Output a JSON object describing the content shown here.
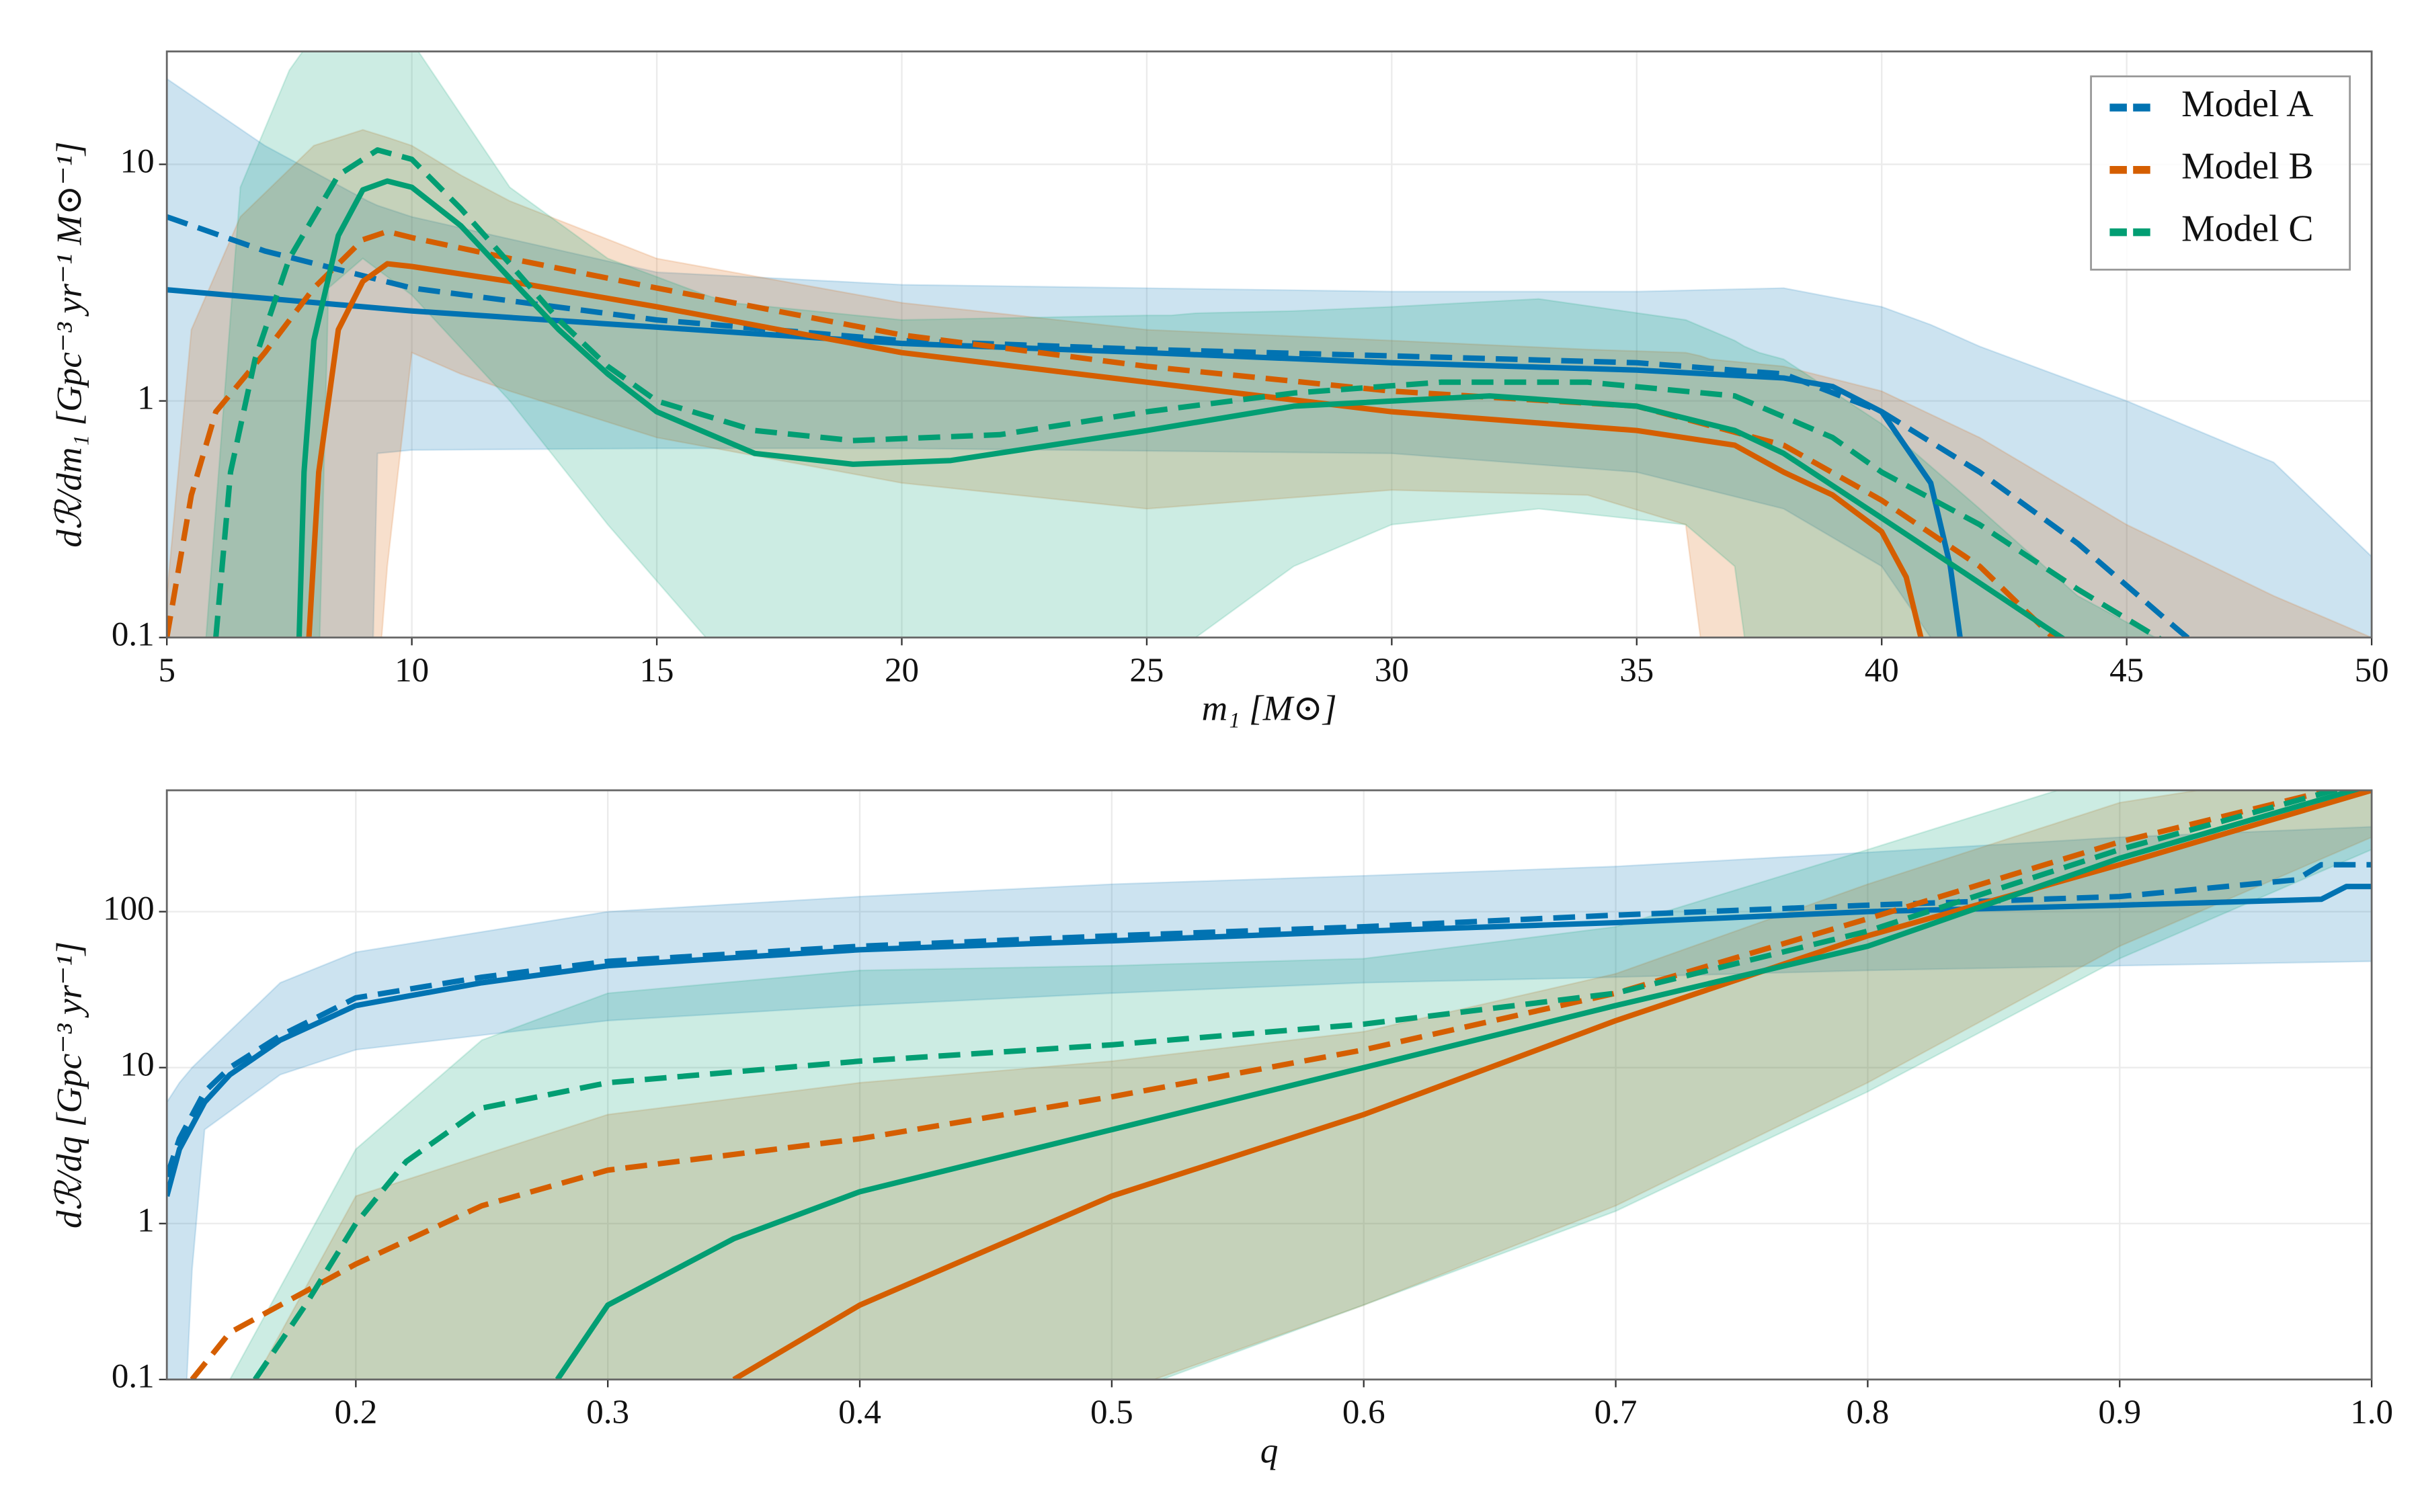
{
  "chart_data": [
    {
      "type": "line",
      "yscale": "log",
      "grid": true,
      "legend": "upper right",
      "xlabel": "m₁ [M⊙]",
      "ylabel": "dℛ/dm₁ [Gpc⁻³ yr⁻¹ M⊙⁻¹]",
      "xlim": [
        5,
        50
      ],
      "ylim": [
        0.1,
        30
      ],
      "xticks": [
        5,
        10,
        15,
        20,
        25,
        30,
        35,
        40,
        45,
        50
      ],
      "yticks": [
        0.1,
        1,
        10
      ],
      "series": [
        {
          "name": "Model A",
          "color": "#0173b2",
          "solid": {
            "x": [
              5,
              10,
              15,
              20,
              25,
              30,
              35,
              38,
              39,
              40,
              41,
              41.4,
              41.6,
              41.7
            ],
            "values": [
              2.95,
              2.4,
              2.05,
              1.75,
              1.6,
              1.45,
              1.35,
              1.25,
              1.15,
              0.9,
              0.45,
              0.2,
              0.1,
              0.05
            ]
          },
          "dashed": {
            "x": [
              5,
              7,
              10,
              15,
              20,
              25,
              30,
              35,
              38,
              40,
              42,
              44,
              46,
              46.5
            ],
            "values": [
              6.0,
              4.3,
              3.0,
              2.2,
              1.8,
              1.65,
              1.55,
              1.45,
              1.3,
              0.9,
              0.5,
              0.25,
              0.11,
              0.09
            ]
          },
          "band": {
            "x": [
              5,
              7,
              9.1,
              9.3,
              10,
              15,
              20,
              30,
              35,
              38,
              40,
              41,
              42,
              45,
              48,
              50
            ],
            "upper": [
              23,
              12,
              7,
              6.7,
              6,
              3.5,
              3.1,
              2.9,
              2.9,
              3.0,
              2.5,
              2.1,
              1.7,
              1.0,
              0.55,
              0.22
            ],
            "lower": [
              0.01,
              0.01,
              0.01,
              0.6,
              0.62,
              0.63,
              0.63,
              0.6,
              0.5,
              0.35,
              0.2,
              0.1,
              0.01,
              0.01,
              0.01,
              0.01
            ]
          }
        },
        {
          "name": "Model B",
          "color": "#d55e00",
          "solid": {
            "x": [
              7.9,
              8.1,
              8.5,
              9,
              9.5,
              10,
              12,
              15,
              20,
              25,
              30,
              35,
              37,
              38,
              39,
              40,
              40.5,
              40.8,
              40.9
            ],
            "values": [
              0.1,
              0.5,
              2.0,
              3.2,
              3.8,
              3.7,
              3.2,
              2.5,
              1.6,
              1.2,
              0.9,
              0.75,
              0.65,
              0.5,
              0.4,
              0.28,
              0.18,
              0.1,
              0.05
            ]
          },
          "dashed": {
            "x": [
              5,
              5.5,
              6,
              7,
              8,
              9,
              9.5,
              10,
              12,
              15,
              20,
              25,
              30,
              35,
              38,
              40,
              42,
              43.5,
              44
            ],
            "values": [
              0.1,
              0.4,
              0.9,
              1.6,
              3.0,
              4.8,
              5.2,
              4.9,
              4.0,
              3.0,
              1.9,
              1.4,
              1.1,
              0.95,
              0.65,
              0.38,
              0.2,
              0.1,
              0.08
            ]
          },
          "band": {
            "x": [
              5,
              5.5,
              6.5,
              8,
              9,
              9.5,
              10,
              11,
              12,
              15,
              20,
              25,
              30,
              34,
              36,
              36.3,
              36.5,
              38,
              40,
              42,
              45,
              48,
              50
            ],
            "upper": [
              0.15,
              2,
              6,
              12,
              14,
              13,
              12,
              9,
              7,
              4,
              2.6,
              2,
              1.8,
              1.65,
              1.6,
              1.55,
              1.5,
              1.4,
              1.1,
              0.7,
              0.3,
              0.15,
              0.1
            ],
            "lower": [
              0.01,
              0.01,
              0.01,
              0.01,
              0.01,
              0.2,
              1.6,
              1.3,
              1.1,
              0.7,
              0.45,
              0.35,
              0.42,
              0.4,
              0.3,
              0.1,
              0.01,
              0.01,
              0.01,
              0.01,
              0.01,
              0.01,
              0.01
            ]
          }
        },
        {
          "name": "Model C",
          "color": "#029e73",
          "solid": {
            "x": [
              7.7,
              7.8,
              8,
              8.5,
              9,
              9.5,
              10,
              11,
              12,
              13,
              14,
              15,
              17,
              19,
              21,
              25,
              28,
              32,
              35,
              37,
              38,
              40,
              42,
              44
            ],
            "values": [
              0.1,
              0.5,
              1.8,
              5,
              7.8,
              8.5,
              8,
              5.5,
              3.3,
              2,
              1.3,
              0.9,
              0.6,
              0.54,
              0.56,
              0.75,
              0.95,
              1.05,
              0.95,
              0.75,
              0.6,
              0.32,
              0.17,
              0.09
            ]
          },
          "dashed": {
            "x": [
              6,
              6.3,
              6.8,
              7.5,
              8.5,
              9.3,
              10,
              11,
              12,
              13,
              14,
              15,
              17,
              19,
              22,
              25,
              28,
              31,
              34,
              37,
              39,
              40,
              42,
              44,
              46
            ],
            "values": [
              0.1,
              0.5,
              1.5,
              4,
              9,
              11.5,
              10.5,
              6.5,
              3.8,
              2.2,
              1.4,
              1.0,
              0.75,
              0.68,
              0.72,
              0.9,
              1.08,
              1.2,
              1.2,
              1.05,
              0.7,
              0.5,
              0.3,
              0.16,
              0.09
            ]
          },
          "band": {
            "x": [
              5.8,
              6.5,
              7.5,
              8,
              8.3,
              9,
              10,
              12,
              14,
              16,
              16.5,
              20,
              25,
              25.5,
              26,
              28,
              30,
              33,
              36,
              37,
              37.2,
              37.5,
              38,
              40,
              42,
              44,
              46
            ],
            "upper": [
              0.1,
              8,
              25,
              35,
              40,
              42,
              33,
              8,
              4,
              2.8,
              2.6,
              2.2,
              2.3,
              2.3,
              2.35,
              2.4,
              2.5,
              2.7,
              2.2,
              1.8,
              1.7,
              1.6,
              1.5,
              0.8,
              0.35,
              0.15,
              0.09
            ],
            "lower": [
              0.01,
              0.01,
              0.01,
              0.01,
              3,
              4,
              2.8,
              1.0,
              0.3,
              0.1,
              0.01,
              0.01,
              0.01,
              0.01,
              0.1,
              0.2,
              0.3,
              0.35,
              0.3,
              0.2,
              0.1,
              0.01,
              0.01,
              0.01,
              0.01,
              0.01,
              0.01
            ]
          }
        }
      ]
    },
    {
      "type": "line",
      "yscale": "log",
      "grid": true,
      "xlabel": "q",
      "ylabel": "dℛ/dq [Gpc⁻³ yr⁻¹]",
      "xlim": [
        0.125,
        1.0
      ],
      "ylim": [
        0.1,
        600
      ],
      "xticks": [
        0.2,
        0.3,
        0.4,
        0.5,
        0.6,
        0.7,
        0.8,
        0.9,
        {
          "value": 1,
          "label": "1.0"
        }
      ],
      "yticks": [
        0.1,
        1,
        10,
        100
      ],
      "series": [
        {
          "name": "Model A",
          "color": "#0173b2",
          "solid": {
            "x": [
              0.125,
              0.13,
              0.14,
              0.15,
              0.17,
              0.2,
              0.25,
              0.3,
              0.4,
              0.5,
              0.6,
              0.7,
              0.8,
              0.9,
              0.98,
              0.99,
              1.0
            ],
            "values": [
              1.5,
              3,
              6,
              9,
              15,
              25,
              35,
              45,
              57,
              65,
              75,
              85,
              100,
              110,
              120,
              145,
              145
            ]
          },
          "dashed": {
            "x": [
              0.125,
              0.13,
              0.14,
              0.15,
              0.17,
              0.2,
              0.25,
              0.3,
              0.4,
              0.5,
              0.6,
              0.7,
              0.8,
              0.9,
              0.97,
              0.98,
              1.0
            ],
            "values": [
              2,
              3.5,
              7,
              10,
              16,
              28,
              38,
              48,
              60,
              70,
              80,
              95,
              110,
              125,
              160,
              200,
              200
            ]
          },
          "band": {
            "x": [
              0.125,
              0.13,
              0.135,
              0.14,
              0.17,
              0.2,
              0.3,
              0.4,
              0.5,
              0.6,
              0.7,
              0.8,
              0.9,
              1.0
            ],
            "upper": [
              6,
              8,
              10,
              12,
              35,
              55,
              100,
              125,
              150,
              170,
              195,
              240,
              300,
              350
            ],
            "lower": [
              0.01,
              0.01,
              0.5,
              4,
              9,
              13,
              20,
              25,
              30,
              35,
              38,
              42,
              45,
              48
            ]
          }
        },
        {
          "name": "Model B",
          "color": "#d55e00",
          "solid": {
            "x": [
              0.35,
              0.4,
              0.5,
              0.6,
              0.7,
              0.8,
              0.9,
              1.0
            ],
            "values": [
              0.1,
              0.3,
              1.5,
              5,
              20,
              70,
              200,
              600
            ]
          },
          "dashed": {
            "x": [
              0.135,
              0.15,
              0.2,
              0.25,
              0.3,
              0.4,
              0.5,
              0.6,
              0.7,
              0.8,
              0.9,
              1.0
            ],
            "values": [
              0.1,
              0.2,
              0.55,
              1.3,
              2.2,
              3.5,
              6.5,
              13,
              30,
              90,
              280,
              700
            ]
          },
          "band": {
            "x": [
              0.16,
              0.2,
              0.3,
              0.4,
              0.5,
              0.6,
              0.7,
              0.8,
              0.9,
              1.0
            ],
            "upper": [
              0.1,
              1.5,
              5,
              8,
              11,
              17,
              40,
              150,
              500,
              900
            ],
            "lower": [
              0.01,
              0.01,
              0.01,
              0.01,
              0.08,
              0.3,
              1.3,
              8,
              60,
              300
            ]
          }
        },
        {
          "name": "Model C",
          "color": "#029e73",
          "solid": {
            "x": [
              0.28,
              0.3,
              0.35,
              0.4,
              0.5,
              0.6,
              0.7,
              0.8,
              0.9,
              1.0
            ],
            "values": [
              0.1,
              0.3,
              0.8,
              1.6,
              4,
              10,
              25,
              60,
              220,
              650
            ]
          },
          "dashed": {
            "x": [
              0.16,
              0.18,
              0.2,
              0.22,
              0.25,
              0.3,
              0.4,
              0.5,
              0.6,
              0.7,
              0.8,
              0.9,
              1.0
            ],
            "values": [
              0.1,
              0.3,
              1,
              2.5,
              5.5,
              8,
              11,
              14,
              19,
              30,
              75,
              250,
              700
            ]
          },
          "band": {
            "x": [
              0.15,
              0.2,
              0.25,
              0.3,
              0.4,
              0.5,
              0.52,
              0.6,
              0.7,
              0.8,
              0.9,
              1.0
            ],
            "upper": [
              0.1,
              3,
              15,
              30,
              42,
              45,
              46,
              50,
              80,
              250,
              800,
              1000
            ],
            "lower": [
              0.01,
              0.01,
              0.01,
              0.01,
              0.01,
              0.01,
              0.1,
              0.3,
              1.2,
              7,
              50,
              250
            ]
          }
        }
      ]
    }
  ]
}
